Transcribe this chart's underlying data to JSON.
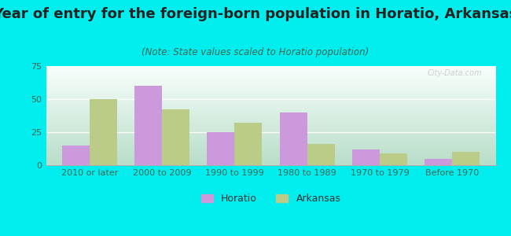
{
  "title": "Year of entry for the foreign-born population in Horatio, Arkansas",
  "subtitle": "(Note: State values scaled to Horatio population)",
  "categories": [
    "2010 or later",
    "2000 to 2009",
    "1990 to 1999",
    "1980 to 1989",
    "1970 to 1979",
    "Before 1970"
  ],
  "horatio_values": [
    15,
    60,
    25,
    40,
    12,
    5
  ],
  "arkansas_values": [
    50,
    42,
    32,
    16,
    9,
    10
  ],
  "horatio_color": "#cc99dd",
  "arkansas_color": "#bbcc88",
  "bg_color": "#00eeee",
  "chart_bg_top": "#f8fffc",
  "chart_bg_bottom": "#b8ddc8",
  "ylim": [
    0,
    75
  ],
  "yticks": [
    0,
    25,
    50,
    75
  ],
  "title_fontsize": 13,
  "subtitle_fontsize": 8.5,
  "tick_fontsize": 8,
  "legend_fontsize": 9,
  "bar_width": 0.38,
  "watermark": "City-Data.com"
}
